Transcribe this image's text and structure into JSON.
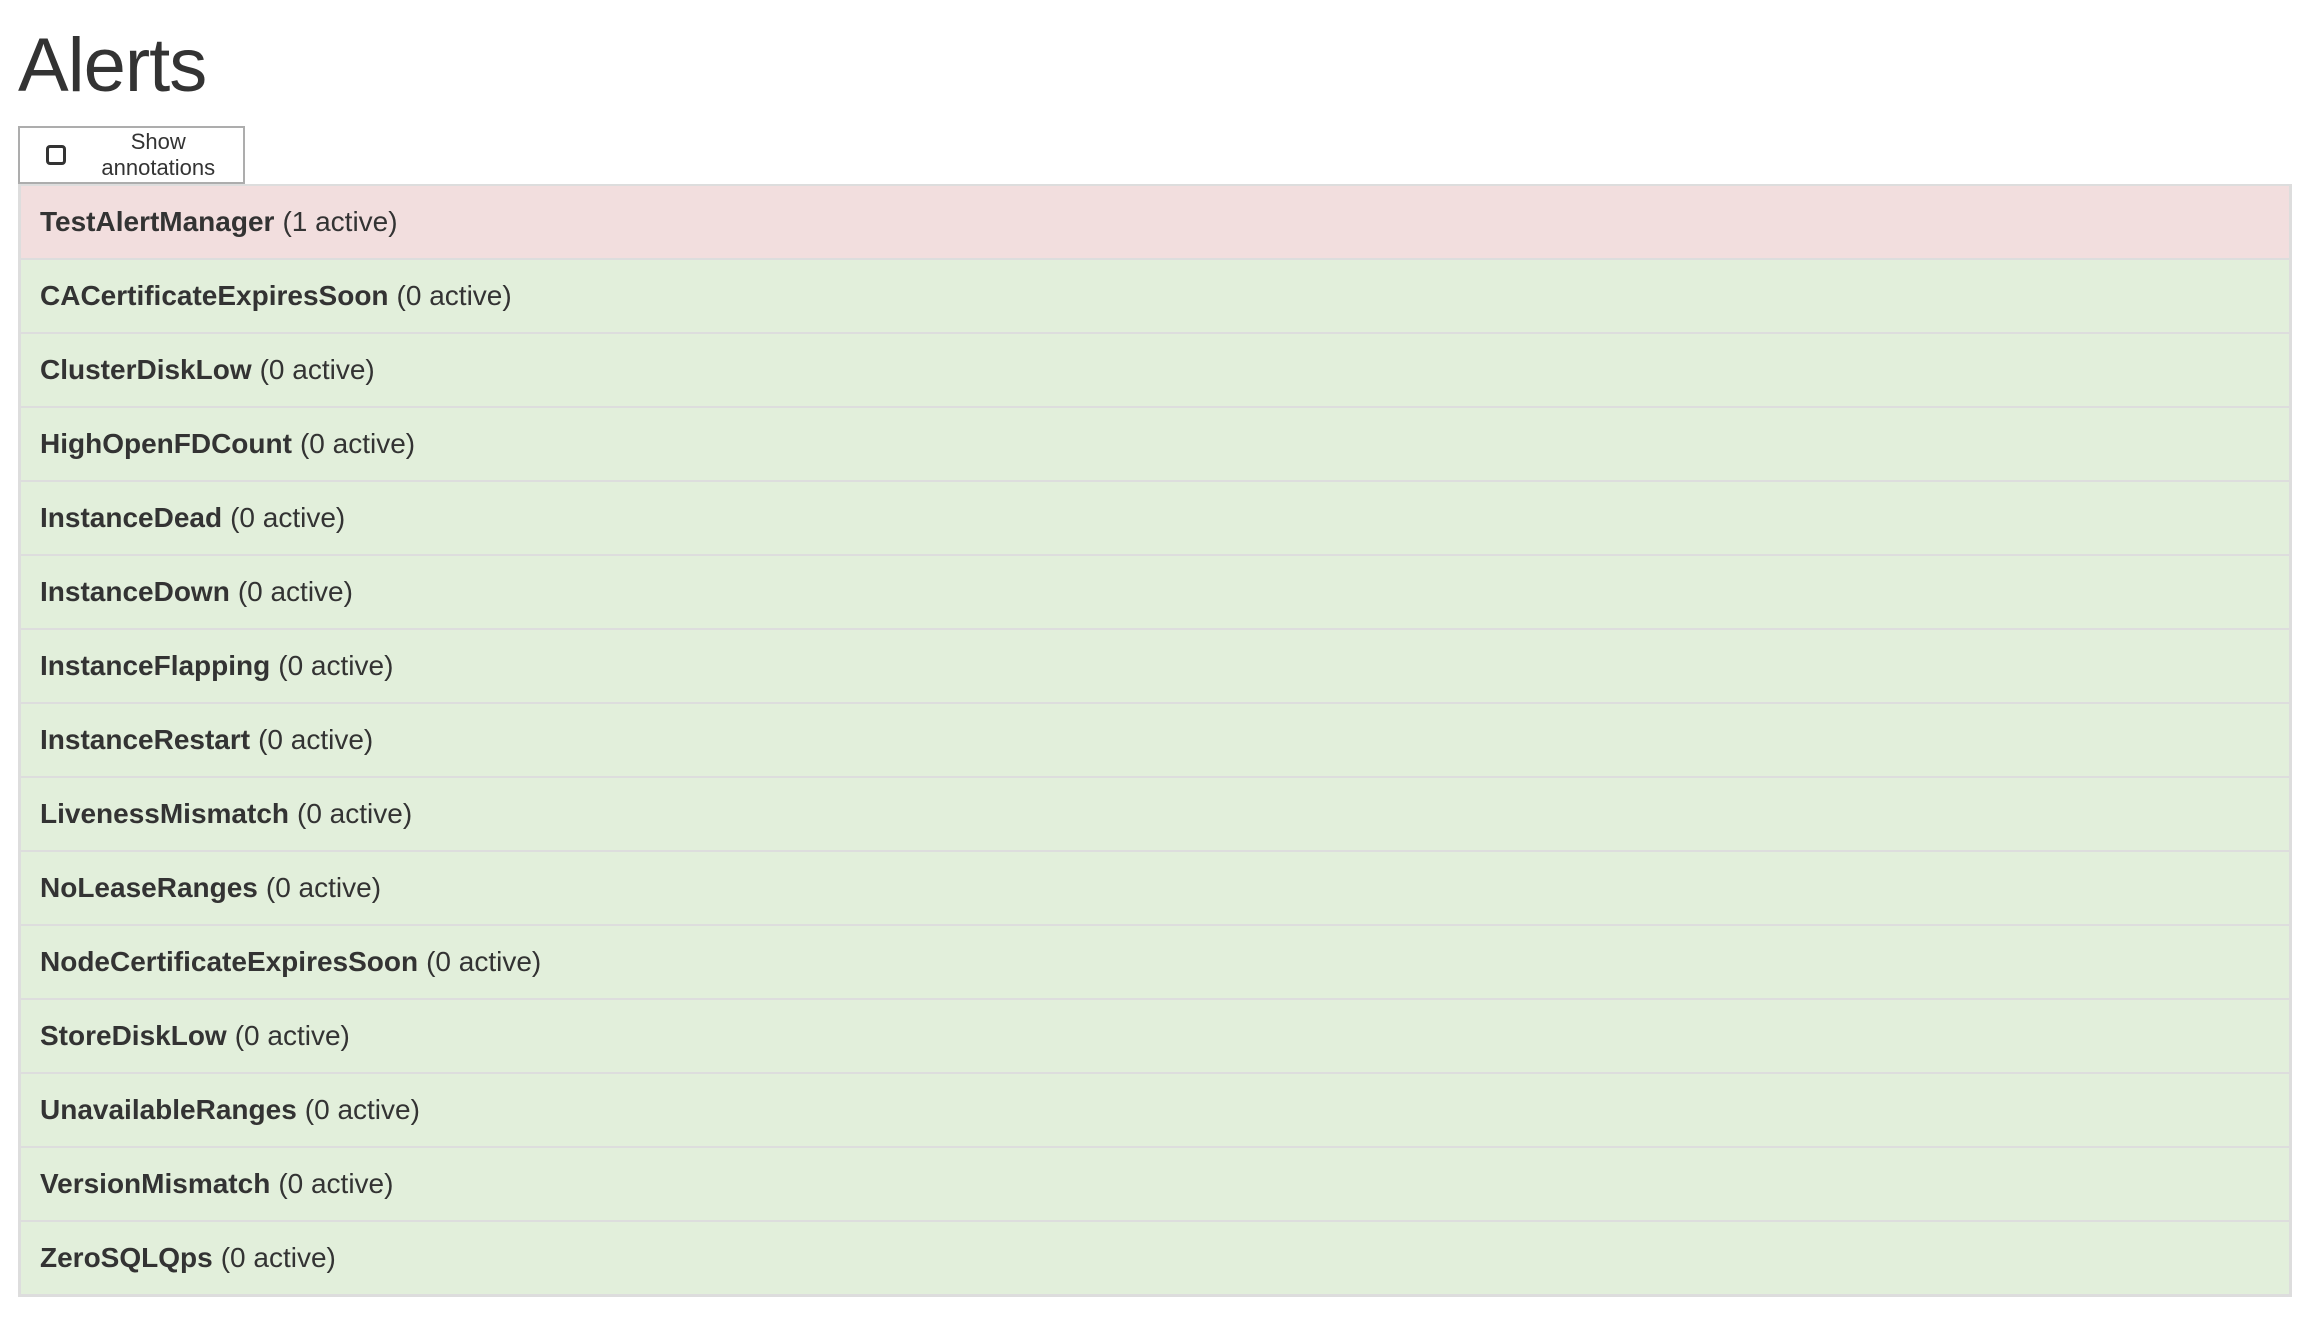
{
  "title": "Alerts",
  "show_annotations": {
    "label": "Show annotations",
    "checked": false
  },
  "colors": {
    "firing": "#f2dede",
    "inactive": "#e2efdb"
  },
  "alerts": [
    {
      "name": "TestAlertManager",
      "count": "(1 active)",
      "state": "firing"
    },
    {
      "name": "CACertificateExpiresSoon",
      "count": "(0 active)",
      "state": "ok"
    },
    {
      "name": "ClusterDiskLow",
      "count": "(0 active)",
      "state": "ok"
    },
    {
      "name": "HighOpenFDCount",
      "count": "(0 active)",
      "state": "ok"
    },
    {
      "name": "InstanceDead",
      "count": "(0 active)",
      "state": "ok"
    },
    {
      "name": "InstanceDown",
      "count": "(0 active)",
      "state": "ok"
    },
    {
      "name": "InstanceFlapping",
      "count": "(0 active)",
      "state": "ok"
    },
    {
      "name": "InstanceRestart",
      "count": "(0 active)",
      "state": "ok"
    },
    {
      "name": "LivenessMismatch",
      "count": "(0 active)",
      "state": "ok"
    },
    {
      "name": "NoLeaseRanges",
      "count": "(0 active)",
      "state": "ok"
    },
    {
      "name": "NodeCertificateExpiresSoon",
      "count": "(0 active)",
      "state": "ok"
    },
    {
      "name": "StoreDiskLow",
      "count": "(0 active)",
      "state": "ok"
    },
    {
      "name": "UnavailableRanges",
      "count": "(0 active)",
      "state": "ok"
    },
    {
      "name": "VersionMismatch",
      "count": "(0 active)",
      "state": "ok"
    },
    {
      "name": "ZeroSQLQps",
      "count": "(0 active)",
      "state": "ok"
    }
  ]
}
